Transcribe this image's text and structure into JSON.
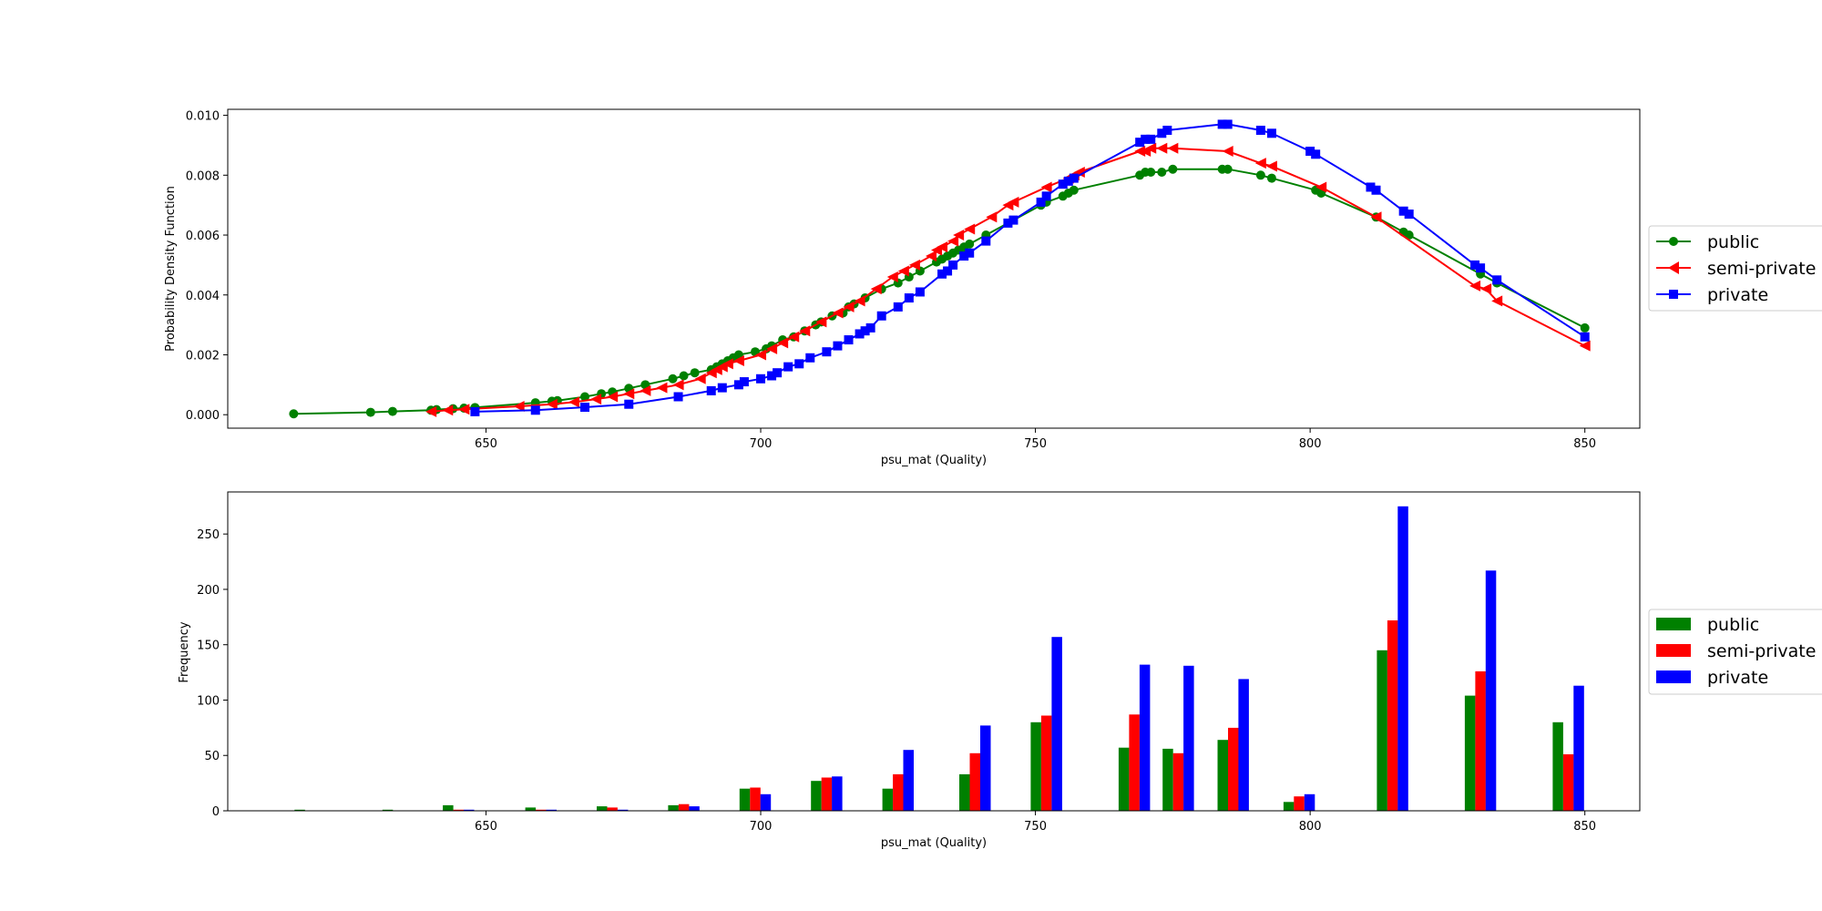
{
  "chart_data": [
    {
      "type": "line",
      "title": "",
      "xlabel": "psu_mat (Quality)",
      "ylabel": "Probability Density Function",
      "xlim": [
        603,
        860
      ],
      "ylim": [
        -0.00045,
        0.0102
      ],
      "xticks": [
        650,
        700,
        750,
        800,
        850
      ],
      "yticks": [
        0.0,
        0.002,
        0.004,
        0.006,
        0.008,
        0.01
      ],
      "ytick_labels": [
        "0.000",
        "0.002",
        "0.004",
        "0.006",
        "0.008",
        "0.010"
      ],
      "grid": false,
      "legend_placement": "outside-right",
      "series": [
        {
          "name": "public",
          "color": "#008000",
          "marker": "circle",
          "x": [
            615,
            629,
            633,
            640,
            641,
            644,
            646,
            648,
            659,
            662,
            663,
            668,
            671,
            673,
            676,
            679,
            684,
            686,
            688,
            691,
            692,
            693,
            694,
            695,
            696,
            699,
            701,
            702,
            704,
            706,
            708,
            710,
            711,
            713,
            715,
            716,
            717,
            719,
            722,
            725,
            727,
            729,
            732,
            733,
            734,
            735,
            736,
            737,
            738,
            741,
            751,
            752,
            755,
            756,
            757,
            769,
            770,
            771,
            773,
            775,
            784,
            785,
            791,
            793,
            801,
            802,
            812,
            817,
            818,
            831,
            834,
            850
          ],
          "y": [
            3e-05,
            8e-05,
            0.00011,
            0.00015,
            0.00017,
            0.0002,
            0.00022,
            0.00024,
            0.0004,
            0.00045,
            0.00047,
            0.0006,
            0.0007,
            0.00076,
            0.00088,
            0.001,
            0.0012,
            0.0013,
            0.0014,
            0.0015,
            0.0016,
            0.0017,
            0.0018,
            0.0019,
            0.002,
            0.0021,
            0.0022,
            0.0023,
            0.0025,
            0.0026,
            0.0028,
            0.003,
            0.0031,
            0.0033,
            0.0034,
            0.0036,
            0.0037,
            0.0039,
            0.0042,
            0.0044,
            0.0046,
            0.0048,
            0.0051,
            0.0052,
            0.0053,
            0.0054,
            0.0055,
            0.0056,
            0.0057,
            0.006,
            0.007,
            0.0071,
            0.0073,
            0.0074,
            0.0075,
            0.008,
            0.0081,
            0.0081,
            0.0081,
            0.0082,
            0.0082,
            0.0082,
            0.008,
            0.0079,
            0.0075,
            0.0074,
            0.0066,
            0.0061,
            0.006,
            0.0047,
            0.0044,
            0.0029
          ]
        },
        {
          "name": "semi-private",
          "color": "#ff0000",
          "marker": "triangle-left",
          "x": [
            640,
            643,
            646,
            656,
            662,
            666,
            670,
            673,
            676,
            679,
            682,
            685,
            689,
            691,
            692,
            693,
            694,
            696,
            700,
            702,
            704,
            706,
            708,
            711,
            714,
            716,
            718,
            721,
            724,
            726,
            728,
            731,
            732,
            733,
            735,
            736,
            738,
            742,
            745,
            746,
            752,
            756,
            757,
            758,
            769,
            770,
            771,
            773,
            775,
            785,
            791,
            793,
            802,
            812,
            830,
            832,
            834,
            850
          ],
          "y": [
            0.0001,
            0.00015,
            0.00018,
            0.00028,
            0.00035,
            0.00042,
            0.00052,
            0.0006,
            0.0007,
            0.0008,
            0.0009,
            0.001,
            0.0012,
            0.0014,
            0.0015,
            0.0016,
            0.0017,
            0.0018,
            0.002,
            0.0022,
            0.0024,
            0.0026,
            0.0028,
            0.0031,
            0.0034,
            0.0036,
            0.0038,
            0.0042,
            0.0046,
            0.0048,
            0.005,
            0.0053,
            0.0055,
            0.0056,
            0.0058,
            0.006,
            0.0062,
            0.0066,
            0.007,
            0.0071,
            0.0076,
            0.0079,
            0.008,
            0.0081,
            0.0088,
            0.0088,
            0.0089,
            0.0089,
            0.0089,
            0.0088,
            0.0084,
            0.0083,
            0.0076,
            0.0066,
            0.0043,
            0.0042,
            0.0038,
            0.0023
          ]
        },
        {
          "name": "private",
          "color": "#0000ff",
          "marker": "square",
          "x": [
            648,
            659,
            668,
            676,
            685,
            691,
            693,
            696,
            697,
            700,
            702,
            703,
            705,
            707,
            709,
            712,
            714,
            716,
            718,
            719,
            720,
            722,
            725,
            727,
            729,
            733,
            734,
            735,
            737,
            738,
            741,
            745,
            746,
            751,
            752,
            755,
            756,
            757,
            769,
            770,
            771,
            773,
            774,
            784,
            785,
            791,
            793,
            800,
            801,
            811,
            812,
            817,
            818,
            830,
            831,
            834,
            850
          ],
          "y": [
            0.0001,
            0.00015,
            0.00025,
            0.00035,
            0.0006,
            0.0008,
            0.0009,
            0.001,
            0.0011,
            0.0012,
            0.0013,
            0.0014,
            0.0016,
            0.0017,
            0.0019,
            0.0021,
            0.0023,
            0.0025,
            0.0027,
            0.0028,
            0.0029,
            0.0033,
            0.0036,
            0.0039,
            0.0041,
            0.0047,
            0.0048,
            0.005,
            0.0053,
            0.0054,
            0.0058,
            0.0064,
            0.0065,
            0.0071,
            0.0073,
            0.0077,
            0.0078,
            0.0079,
            0.0091,
            0.0092,
            0.0092,
            0.0094,
            0.0095,
            0.0097,
            0.0097,
            0.0095,
            0.0094,
            0.0088,
            0.0087,
            0.0076,
            0.0075,
            0.0068,
            0.0067,
            0.005,
            0.0049,
            0.0045,
            0.0026
          ]
        }
      ]
    },
    {
      "type": "bar",
      "title": "",
      "xlabel": "psu_mat (Quality)",
      "ylabel": "Frequency",
      "xlim": [
        603,
        860
      ],
      "ylim": [
        0,
        288
      ],
      "xticks": [
        650,
        700,
        750,
        800,
        850
      ],
      "yticks": [
        0,
        50,
        100,
        150,
        200,
        250
      ],
      "grid": false,
      "legend_placement": "outside-right",
      "bin_centers": [
        618,
        634,
        645,
        660,
        673,
        686,
        699,
        712,
        725,
        739,
        752,
        768,
        776,
        786,
        798,
        815,
        831,
        847
      ],
      "group_width": 5.7,
      "series": [
        {
          "name": "public",
          "color": "#008000",
          "values": [
            1,
            1,
            5,
            3,
            4,
            5,
            20,
            27,
            20,
            33,
            80,
            57,
            56,
            64,
            8,
            145,
            104,
            80
          ]
        },
        {
          "name": "semi-private",
          "color": "#ff0000",
          "values": [
            0,
            0,
            1,
            1,
            3,
            6,
            21,
            30,
            33,
            52,
            86,
            87,
            52,
            75,
            13,
            172,
            126,
            51
          ]
        },
        {
          "name": "private",
          "color": "#0000ff",
          "values": [
            0,
            0,
            1,
            1,
            1,
            4,
            15,
            31,
            55,
            77,
            157,
            132,
            131,
            119,
            15,
            275,
            217,
            113
          ]
        }
      ]
    }
  ]
}
